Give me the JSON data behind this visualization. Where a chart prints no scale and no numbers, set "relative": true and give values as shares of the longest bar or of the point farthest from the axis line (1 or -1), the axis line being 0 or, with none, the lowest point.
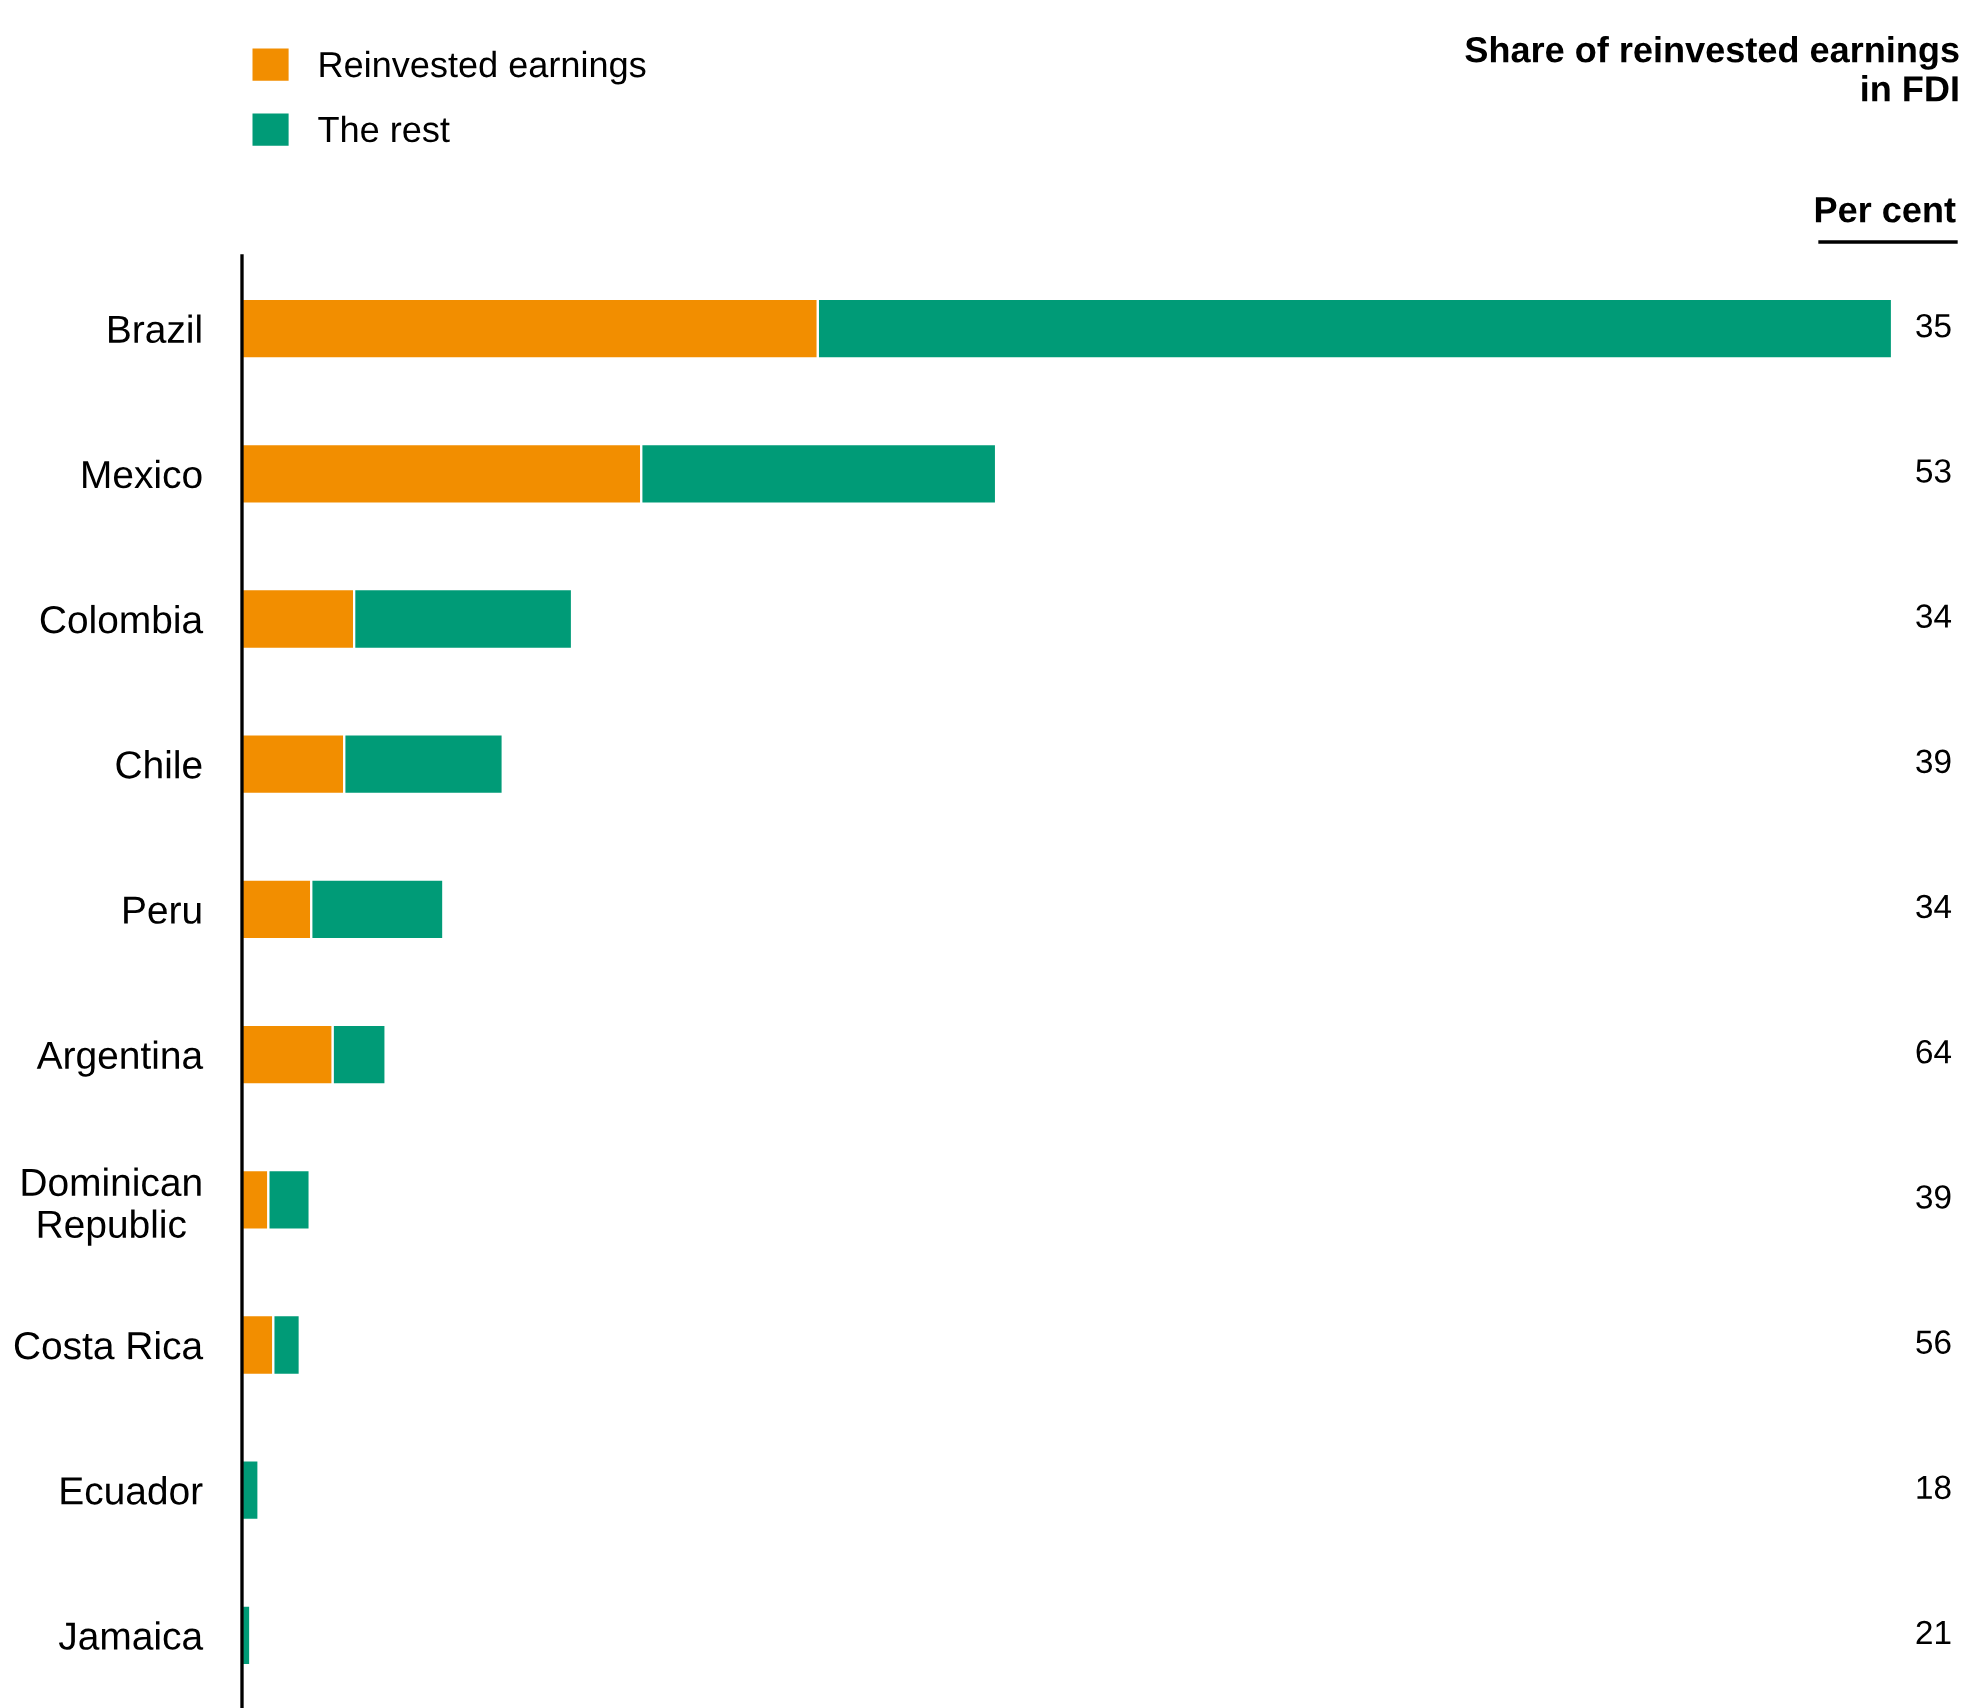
{
  "chart_data": {
    "type": "bar",
    "orientation": "horizontal",
    "stacked": true,
    "relative": true,
    "title": "Share of reinvested earnings in FDI",
    "categories": [
      "Brazil",
      "Mexico",
      "Colombia",
      "Chile",
      "Peru",
      "Argentina",
      "Dominican\nRepublic",
      "Costa Rica",
      "Ecuador",
      "Jamaica"
    ],
    "series": [
      {
        "name": "Reinvested earnings",
        "color": "#f28e00",
        "values": [
          0.349,
          0.242,
          0.068,
          0.062,
          0.042,
          0.055,
          0.016,
          0.019,
          null,
          null
        ]
      },
      {
        "name": "The rest",
        "color": "#009b77",
        "values": [
          0.651,
          0.215,
          0.132,
          0.096,
          0.08,
          0.032,
          0.025,
          0.016,
          0.01,
          0.005
        ]
      }
    ],
    "annotations": [
      "Per cent",
      "35",
      "53",
      "34",
      "39",
      "34",
      "64",
      "39",
      "56",
      "18",
      "21"
    ],
    "legend": "top left",
    "grid": false
  }
}
